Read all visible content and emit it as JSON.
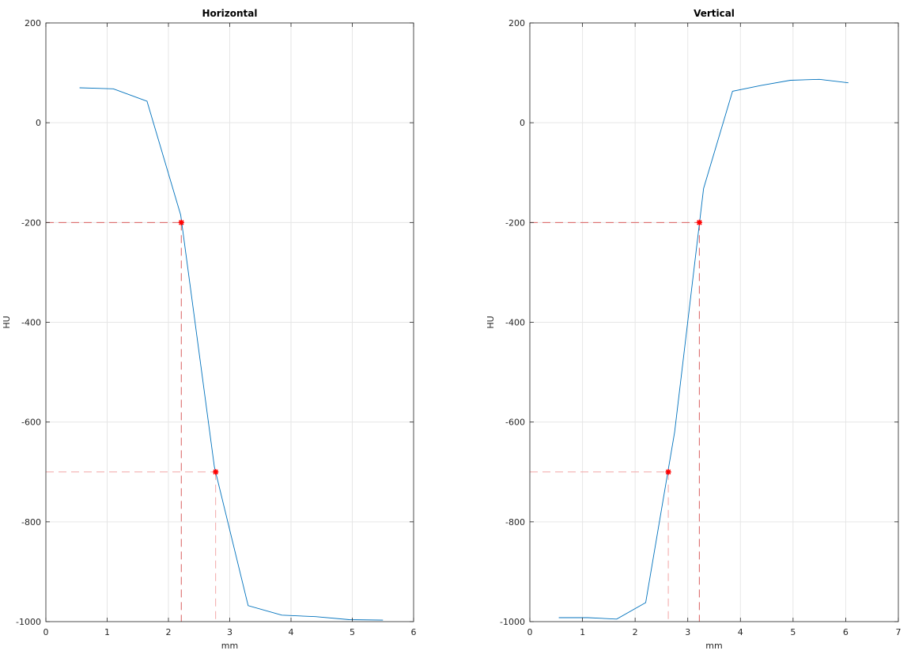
{
  "chart_data": [
    {
      "type": "line",
      "title": "Horizontal",
      "xlabel": "mm",
      "ylabel": "HU",
      "xlim": [
        0,
        6
      ],
      "ylim": [
        -1000,
        200
      ],
      "xticks": [
        "0",
        "1",
        "2",
        "3",
        "4",
        "5",
        "6"
      ],
      "yticks": [
        "-1000",
        "-800",
        "-600",
        "-400",
        "-200",
        "0",
        "200"
      ],
      "grid": true,
      "series": [
        {
          "color": "#0072BD",
          "x": [
            0.55,
            1.1,
            1.65,
            2.2,
            2.75,
            3.3,
            3.85,
            4.4,
            4.95,
            5.5
          ],
          "y": [
            70,
            68,
            43,
            -185,
            -690,
            -968,
            -987,
            -990,
            -996,
            -997
          ]
        }
      ],
      "markers": [
        {
          "x": 2.21,
          "y": -200,
          "color": "#FF0000",
          "guide_color": "#D95F5F"
        },
        {
          "x": 2.77,
          "y": -700,
          "color": "#FF0000",
          "guide_color": "#F2A6A6"
        }
      ]
    },
    {
      "type": "line",
      "title": "Vertical",
      "xlabel": "mm",
      "ylabel": "HU",
      "xlim": [
        0,
        7
      ],
      "ylim": [
        -1000,
        200
      ],
      "xticks": [
        "0",
        "1",
        "2",
        "3",
        "4",
        "5",
        "6",
        "7"
      ],
      "yticks": [
        "-1000",
        "-800",
        "-600",
        "-400",
        "-200",
        "0",
        "200"
      ],
      "grid": true,
      "series": [
        {
          "color": "#0072BD",
          "x": [
            0.55,
            1.1,
            1.65,
            2.2,
            2.75,
            3.3,
            3.85,
            4.4,
            4.95,
            5.5,
            6.05
          ],
          "y": [
            -992,
            -992,
            -995,
            -962,
            -620,
            -132,
            63,
            75,
            85,
            87,
            80
          ]
        }
      ],
      "markers": [
        {
          "x": 3.22,
          "y": -200,
          "color": "#FF0000",
          "guide_color": "#D95F5F"
        },
        {
          "x": 2.63,
          "y": -700,
          "color": "#FF0000",
          "guide_color": "#F2A6A6"
        }
      ]
    }
  ]
}
